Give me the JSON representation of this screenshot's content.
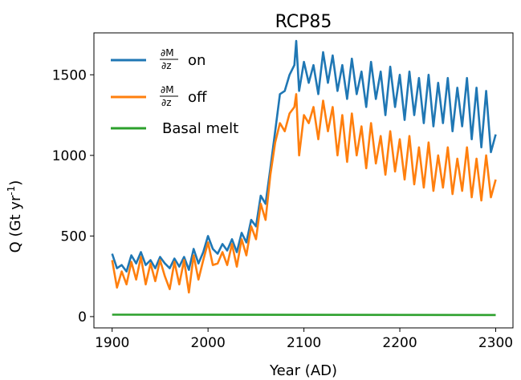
{
  "chart_data": {
    "type": "line",
    "title": "RCP85",
    "xlabel": "Year (AD)",
    "ylabel_main": "Q (Gt yr",
    "ylabel_sup": "-1",
    "ylabel_close": ")",
    "xlim": [
      1881,
      2318
    ],
    "ylim": [
      -70,
      1760
    ],
    "xticks": [
      1900,
      2000,
      2100,
      2200,
      2300
    ],
    "yticks": [
      0,
      500,
      1000,
      1500
    ],
    "grid": false,
    "legend_position": "top-left",
    "series": [
      {
        "key": "on",
        "legend_num": "∂M",
        "legend_den": "∂z",
        "legend_suffix": "on",
        "color": "#1f77b4",
        "x": [
          1900,
          1905,
          1910,
          1915,
          1920,
          1925,
          1930,
          1935,
          1940,
          1945,
          1950,
          1955,
          1960,
          1965,
          1970,
          1975,
          1980,
          1985,
          1990,
          1995,
          2000,
          2005,
          2010,
          2015,
          2020,
          2025,
          2030,
          2035,
          2040,
          2045,
          2050,
          2055,
          2060,
          2065,
          2070,
          2075,
          2080,
          2085,
          2090,
          2092,
          2095,
          2100,
          2105,
          2110,
          2115,
          2120,
          2125,
          2130,
          2135,
          2140,
          2145,
          2150,
          2155,
          2160,
          2165,
          2170,
          2175,
          2180,
          2185,
          2190,
          2195,
          2200,
          2205,
          2210,
          2215,
          2220,
          2225,
          2230,
          2235,
          2240,
          2245,
          2250,
          2255,
          2260,
          2265,
          2270,
          2275,
          2280,
          2285,
          2290,
          2295,
          2300
        ],
        "y": [
          390,
          300,
          320,
          280,
          380,
          330,
          400,
          320,
          350,
          300,
          370,
          330,
          300,
          360,
          310,
          370,
          290,
          420,
          330,
          400,
          500,
          420,
          390,
          450,
          410,
          480,
          400,
          520,
          460,
          600,
          560,
          750,
          700,
          920,
          1150,
          1380,
          1400,
          1500,
          1560,
          1710,
          1400,
          1580,
          1450,
          1560,
          1380,
          1640,
          1450,
          1620,
          1400,
          1560,
          1350,
          1600,
          1380,
          1520,
          1300,
          1580,
          1350,
          1520,
          1250,
          1550,
          1300,
          1500,
          1220,
          1520,
          1250,
          1480,
          1200,
          1500,
          1180,
          1450,
          1200,
          1480,
          1150,
          1420,
          1180,
          1480,
          1100,
          1420,
          1050,
          1400,
          1020,
          1130
        ]
      },
      {
        "key": "off",
        "legend_num": "∂M",
        "legend_den": "∂z",
        "legend_suffix": "off",
        "color": "#ff7f0e",
        "x": [
          1900,
          1905,
          1910,
          1915,
          1920,
          1925,
          1930,
          1935,
          1940,
          1945,
          1950,
          1955,
          1960,
          1965,
          1970,
          1975,
          1980,
          1985,
          1990,
          1995,
          2000,
          2005,
          2010,
          2015,
          2020,
          2025,
          2030,
          2035,
          2040,
          2045,
          2050,
          2055,
          2060,
          2065,
          2070,
          2075,
          2080,
          2085,
          2090,
          2092,
          2095,
          2100,
          2105,
          2110,
          2115,
          2120,
          2125,
          2130,
          2135,
          2140,
          2145,
          2150,
          2155,
          2160,
          2165,
          2170,
          2175,
          2180,
          2185,
          2190,
          2195,
          2200,
          2205,
          2210,
          2215,
          2220,
          2225,
          2230,
          2235,
          2240,
          2245,
          2250,
          2255,
          2260,
          2265,
          2270,
          2275,
          2280,
          2285,
          2290,
          2295,
          2300
        ],
        "y": [
          350,
          180,
          280,
          200,
          340,
          230,
          370,
          200,
          330,
          220,
          350,
          250,
          170,
          340,
          200,
          350,
          150,
          380,
          230,
          350,
          460,
          320,
          330,
          400,
          320,
          450,
          310,
          480,
          380,
          560,
          480,
          700,
          600,
          880,
          1080,
          1200,
          1150,
          1260,
          1300,
          1380,
          1000,
          1250,
          1200,
          1300,
          1100,
          1340,
          1150,
          1300,
          1000,
          1250,
          960,
          1260,
          1000,
          1180,
          920,
          1200,
          950,
          1120,
          880,
          1150,
          900,
          1100,
          850,
          1120,
          820,
          1050,
          800,
          1080,
          780,
          1000,
          800,
          1050,
          760,
          980,
          780,
          1050,
          740,
          980,
          720,
          1000,
          740,
          850
        ]
      },
      {
        "key": "basal",
        "legend_text": "Basal melt",
        "color": "#2ca02c",
        "x": [
          1900,
          2300
        ],
        "y": [
          12,
          10
        ]
      }
    ]
  }
}
